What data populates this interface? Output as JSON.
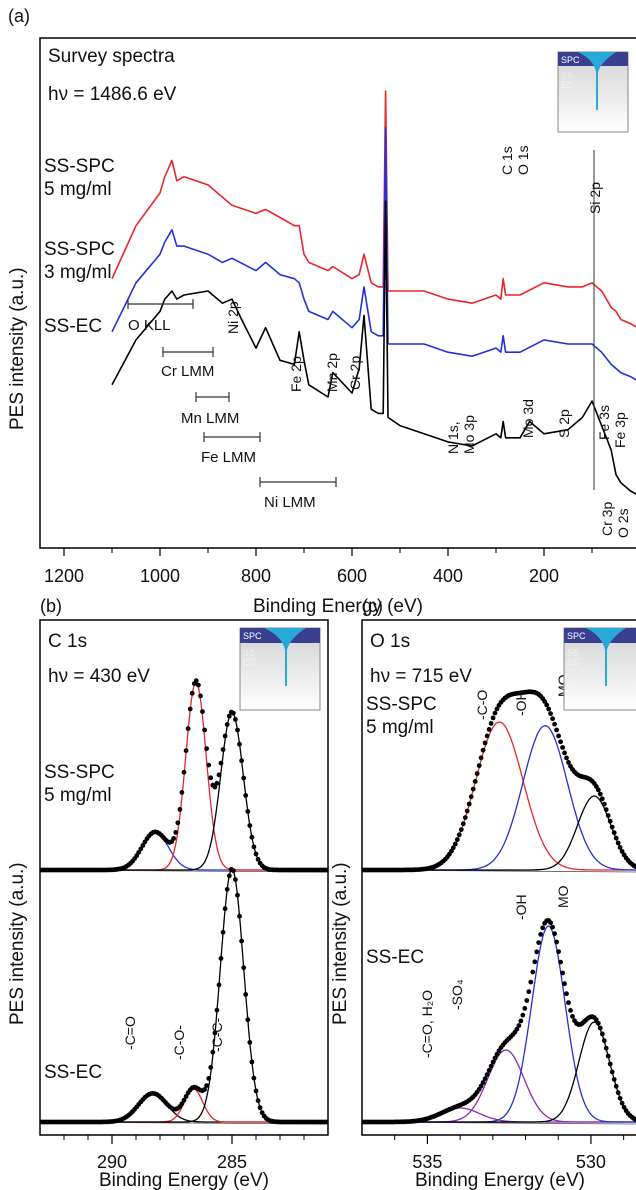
{
  "panels": {
    "a": {
      "label": "(a)",
      "title": "Survey spectra",
      "photon": "hν = 1486.6 eV",
      "ylabel": "PES intensity (a.u.)",
      "xlabel": "Binding Energy (eV)",
      "xticks": [
        "1200",
        "1000",
        "800",
        "600",
        "400",
        "200"
      ],
      "samples": [
        "SS-SPC\n5 mg/ml",
        "SS-SPC\n3 mg/ml",
        "SS-EC"
      ],
      "peak_labels": [
        "O 1s",
        "C 1s",
        "Si 2p",
        "Ni 2p",
        "Fe 2p",
        "Mn 2p",
        "Cr 2p",
        "N 1s,\nMo 3p",
        "Mo 3d",
        "S 2p",
        "Fe 3s",
        "Fe 3p",
        "Cr 3p",
        "O 2s"
      ],
      "auger": [
        "O KLL",
        "Cr LMM",
        "Mn LMM",
        "Fe LMM",
        "Ni LMM"
      ],
      "inset": [
        "SPC",
        "SS-\nEC",
        "SS"
      ]
    },
    "b": {
      "label": "(b)",
      "title": "C 1s",
      "photon": "hν = 430 eV",
      "ylabel": "PES intensity (a.u.)",
      "xlabel": "Binding Energy (eV)",
      "xticks": [
        "290",
        "285"
      ],
      "samples": [
        "SS-SPC\n5 mg/ml",
        "SS-EC"
      ],
      "components": [
        "-C=O",
        "-C-O-",
        "-C-C-"
      ],
      "inset": [
        "SPC",
        "SS-\nEC",
        "SS"
      ]
    },
    "c": {
      "label": "(c)",
      "title": "O 1s",
      "photon": "hν = 715 eV",
      "ylabel": "PES intensity (a.u.)",
      "xlabel": "Binding Energy (eV)",
      "xticks": [
        "535",
        "530"
      ],
      "samples": [
        "SS-SPC\n5 mg/ml",
        "SS-EC"
      ],
      "components": [
        "-C-O",
        "-OH",
        "MO",
        "-C=O, H₂O",
        "-SO₄"
      ],
      "inset": [
        "SPC",
        "SS-\nEC",
        "SS"
      ]
    }
  },
  "colors": {
    "red": "#e8262b",
    "blue": "#2332d8",
    "black": "#000000",
    "purple": "#8a2ab0",
    "inset_top": "#3b3f8f",
    "inset_cyan": "#29a9d9"
  },
  "chart_data": [
    {
      "type": "line",
      "title": "Survey spectra",
      "xlabel": "Binding Energy (eV)",
      "ylabel": "PES intensity (a.u.)",
      "xlim": [
        1250,
        0
      ],
      "series": [
        {
          "name": "SS-SPC 5 mg/ml",
          "color": "red",
          "x": [
            1100,
            1050,
            1000,
            990,
            975,
            965,
            950,
            900,
            870,
            850,
            800,
            780,
            750,
            720,
            710,
            700,
            690,
            650,
            640,
            600,
            585,
            575,
            560,
            545,
            535,
            530,
            525,
            500,
            450,
            400,
            350,
            300,
            290,
            285,
            280,
            250,
            200,
            150,
            120,
            100,
            80,
            60,
            50,
            40,
            20,
            5
          ],
          "y": [
            3.6,
            4.9,
            5.7,
            6.1,
            6.5,
            6.0,
            6.1,
            5.9,
            5.6,
            5.4,
            5.2,
            5.3,
            5.1,
            4.9,
            4.9,
            4.2,
            4.0,
            3.8,
            3.9,
            3.6,
            3.7,
            4.2,
            3.5,
            3.4,
            3.4,
            8.2,
            3.3,
            3.3,
            3.3,
            3.1,
            3.0,
            3.2,
            3.1,
            3.6,
            3.2,
            3.2,
            3.5,
            3.4,
            3.4,
            3.5,
            3.3,
            2.9,
            2.8,
            2.6,
            2.5,
            2.4
          ]
        },
        {
          "name": "SS-SPC 3 mg/ml",
          "color": "blue",
          "x": [
            1100,
            1050,
            1000,
            990,
            975,
            965,
            950,
            900,
            870,
            850,
            800,
            780,
            750,
            720,
            710,
            700,
            690,
            650,
            640,
            600,
            585,
            575,
            560,
            545,
            535,
            530,
            525,
            500,
            450,
            400,
            350,
            300,
            290,
            285,
            280,
            250,
            200,
            150,
            120,
            100,
            80,
            60,
            50,
            40,
            20,
            5
          ],
          "y": [
            2.3,
            3.5,
            4.2,
            4.5,
            4.8,
            4.4,
            4.4,
            4.2,
            4.0,
            4.1,
            3.8,
            4.0,
            3.7,
            3.6,
            3.5,
            3.1,
            2.8,
            2.6,
            2.8,
            2.4,
            2.6,
            3.4,
            2.3,
            2.2,
            2.2,
            7.3,
            2.0,
            2.0,
            2.0,
            1.8,
            1.7,
            1.9,
            1.8,
            2.2,
            1.8,
            1.8,
            2.1,
            2.0,
            2.0,
            2.0,
            1.8,
            1.5,
            1.4,
            1.3,
            1.2,
            1.1
          ]
        },
        {
          "name": "SS-EC",
          "color": "black",
          "x": [
            1100,
            1050,
            1000,
            990,
            975,
            965,
            950,
            900,
            870,
            850,
            830,
            800,
            780,
            750,
            720,
            710,
            700,
            690,
            650,
            640,
            600,
            585,
            575,
            560,
            545,
            535,
            530,
            525,
            500,
            450,
            400,
            350,
            300,
            290,
            285,
            280,
            250,
            230,
            200,
            150,
            120,
            100,
            80,
            60,
            50,
            40,
            20,
            5
          ],
          "y": [
            1.0,
            2.1,
            2.8,
            3.1,
            3.3,
            3.1,
            3.2,
            3.3,
            3.0,
            3.1,
            2.6,
            1.9,
            2.4,
            1.6,
            1.5,
            2.3,
            1.6,
            1.0,
            0.7,
            1.3,
            0.8,
            1.4,
            2.7,
            0.4,
            0.3,
            0.3,
            5.5,
            0.2,
            0.0,
            -0.2,
            -0.4,
            -0.5,
            -0.2,
            -0.3,
            0.1,
            -0.3,
            -0.3,
            0.1,
            -0.2,
            -0.1,
            0.2,
            0.6,
            0.0,
            -0.6,
            -1.2,
            -1.4,
            -1.6,
            -1.7
          ]
        }
      ]
    },
    {
      "type": "line",
      "title": "C 1s",
      "xlabel": "Binding Energy (eV)",
      "ylabel": "PES intensity (a.u.)",
      "xlim": [
        293,
        281
      ],
      "series": [
        {
          "name": "SS-SPC 5 mg/ml",
          "color": "black",
          "role": "data",
          "x": [
            293,
            291,
            290,
            289,
            288.5,
            288,
            287.5,
            287,
            286.8,
            286.5,
            286.2,
            286,
            285.8,
            285.5,
            285.2,
            285,
            284.8,
            284.5,
            284.2,
            284,
            283.8,
            283.5,
            283,
            282.5
          ],
          "y": [
            0.0,
            0.02,
            0.06,
            0.15,
            0.24,
            0.25,
            0.32,
            0.72,
            0.86,
            1.0,
            0.98,
            0.84,
            0.8,
            0.82,
            0.84,
            0.82,
            0.76,
            0.58,
            0.42,
            0.24,
            0.14,
            0.06,
            0.01,
            0.0
          ]
        },
        {
          "name": "SS-EC",
          "color": "black",
          "role": "data",
          "x": [
            293,
            291,
            290,
            289,
            288.5,
            288,
            287.5,
            287,
            286.8,
            286.5,
            286.2,
            286,
            285.8,
            285.5,
            285.2,
            285,
            284.8,
            284.5,
            284.2,
            284,
            283.8,
            283.5,
            283,
            282.5
          ],
          "y": [
            0.0,
            0.02,
            0.06,
            0.12,
            0.16,
            0.15,
            0.12,
            0.16,
            0.2,
            0.28,
            0.4,
            0.55,
            0.72,
            0.95,
            1.12,
            1.18,
            1.1,
            0.82,
            0.5,
            0.28,
            0.14,
            0.06,
            0.02,
            0.0
          ]
        }
      ]
    },
    {
      "type": "line",
      "title": "O 1s",
      "xlabel": "Binding Energy (eV)",
      "ylabel": "PES intensity (a.u.)",
      "xlim": [
        537,
        528.5
      ],
      "series": [
        {
          "name": "SS-SPC 5 mg/ml",
          "color": "black",
          "role": "data",
          "x": [
            537,
            536,
            535,
            534.5,
            534,
            533.6,
            533.2,
            532.8,
            532.4,
            532,
            531.6,
            531.2,
            530.8,
            530.4,
            530,
            529.6,
            529.2,
            528.8
          ],
          "y": [
            0.0,
            0.04,
            0.15,
            0.3,
            0.55,
            0.8,
            0.94,
            1.0,
            0.98,
            0.92,
            0.84,
            0.76,
            0.66,
            0.55,
            0.4,
            0.26,
            0.14,
            0.08
          ]
        },
        {
          "name": "SS-EC",
          "color": "black",
          "role": "data",
          "x": [
            537,
            536,
            535,
            534.5,
            534,
            533.6,
            533.2,
            532.8,
            532.4,
            532,
            531.6,
            531.2,
            530.8,
            530.4,
            530,
            529.6,
            529.2,
            528.8
          ],
          "y": [
            0.0,
            0.02,
            0.05,
            0.08,
            0.14,
            0.22,
            0.36,
            0.58,
            0.86,
            1.06,
            1.08,
            0.98,
            0.82,
            0.66,
            0.48,
            0.3,
            0.16,
            0.08
          ]
        }
      ]
    }
  ]
}
